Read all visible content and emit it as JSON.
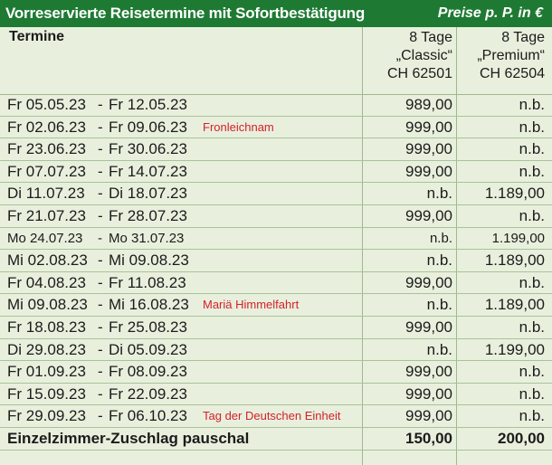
{
  "header": {
    "title": "Vorreservierte Reisetermine mit Sofortbestätigung",
    "currency_note": "Preise p. P. in €"
  },
  "columns": {
    "termine": "Termine",
    "classic": {
      "line1": "8 Tage",
      "line2": "„Classic“",
      "line3": "CH 62501"
    },
    "premium": {
      "line1": "8 Tage",
      "line2": "„Premium“",
      "line3": "CH 62504"
    }
  },
  "rows": [
    {
      "from": "Fr  05.05.23",
      "to": "Fr  12.05.23",
      "note": "",
      "classic": "989,00",
      "premium": "n.b."
    },
    {
      "from": "Fr  02.06.23",
      "to": "Fr  09.06.23",
      "note": "Fronleichnam",
      "classic": "999,00",
      "premium": "n.b."
    },
    {
      "from": "Fr  23.06.23",
      "to": "Fr  30.06.23",
      "note": "",
      "classic": "999,00",
      "premium": "n.b."
    },
    {
      "from": "Fr  07.07.23",
      "to": "Fr  14.07.23",
      "note": "",
      "classic": "999,00",
      "premium": "n.b."
    },
    {
      "from": "Di  11.07.23",
      "to": "Di  18.07.23",
      "note": "",
      "classic": "n.b.",
      "premium": "1.189,00"
    },
    {
      "from": "Fr  21.07.23",
      "to": "Fr  28.07.23",
      "note": "",
      "classic": "999,00",
      "premium": "n.b."
    },
    {
      "from": "Mo 24.07.23",
      "to": "Mo 31.07.23",
      "note": "",
      "classic": "n.b.",
      "premium": "1.199,00"
    },
    {
      "from": "Mi  02.08.23",
      "to": "Mi  09.08.23",
      "note": "",
      "classic": "n.b.",
      "premium": "1.189,00"
    },
    {
      "from": "Fr  04.08.23",
      "to": "Fr  11.08.23",
      "note": "",
      "classic": "999,00",
      "premium": "n.b."
    },
    {
      "from": "Mi  09.08.23",
      "to": "Mi  16.08.23",
      "note": "Mariä Himmelfahrt",
      "classic": "n.b.",
      "premium": "1.189,00"
    },
    {
      "from": "Fr  18.08.23",
      "to": "Fr  25.08.23",
      "note": "",
      "classic": "999,00",
      "premium": "n.b."
    },
    {
      "from": "Di  29.08.23",
      "to": "Di  05.09.23",
      "note": "",
      "classic": "n.b.",
      "premium": "1.199,00"
    },
    {
      "from": "Fr  01.09.23",
      "to": "Fr  08.09.23",
      "note": "",
      "classic": "999,00",
      "premium": "n.b."
    },
    {
      "from": "Fr  15.09.23",
      "to": "Fr  22.09.23",
      "note": "",
      "classic": "999,00",
      "premium": "n.b."
    },
    {
      "from": "Fr  29.09.23",
      "to": "Fr  06.10.23",
      "note": "Tag der Deutschen Einheit",
      "classic": "999,00",
      "premium": "n.b."
    }
  ],
  "footer": {
    "label": "Einzelzimmer-Zuschlag pauschal",
    "classic": "150,00",
    "premium": "200,00"
  },
  "colors": {
    "title_bg": "#1e7a33",
    "table_bg": "#e8f0dd",
    "note": "#d4202a"
  }
}
